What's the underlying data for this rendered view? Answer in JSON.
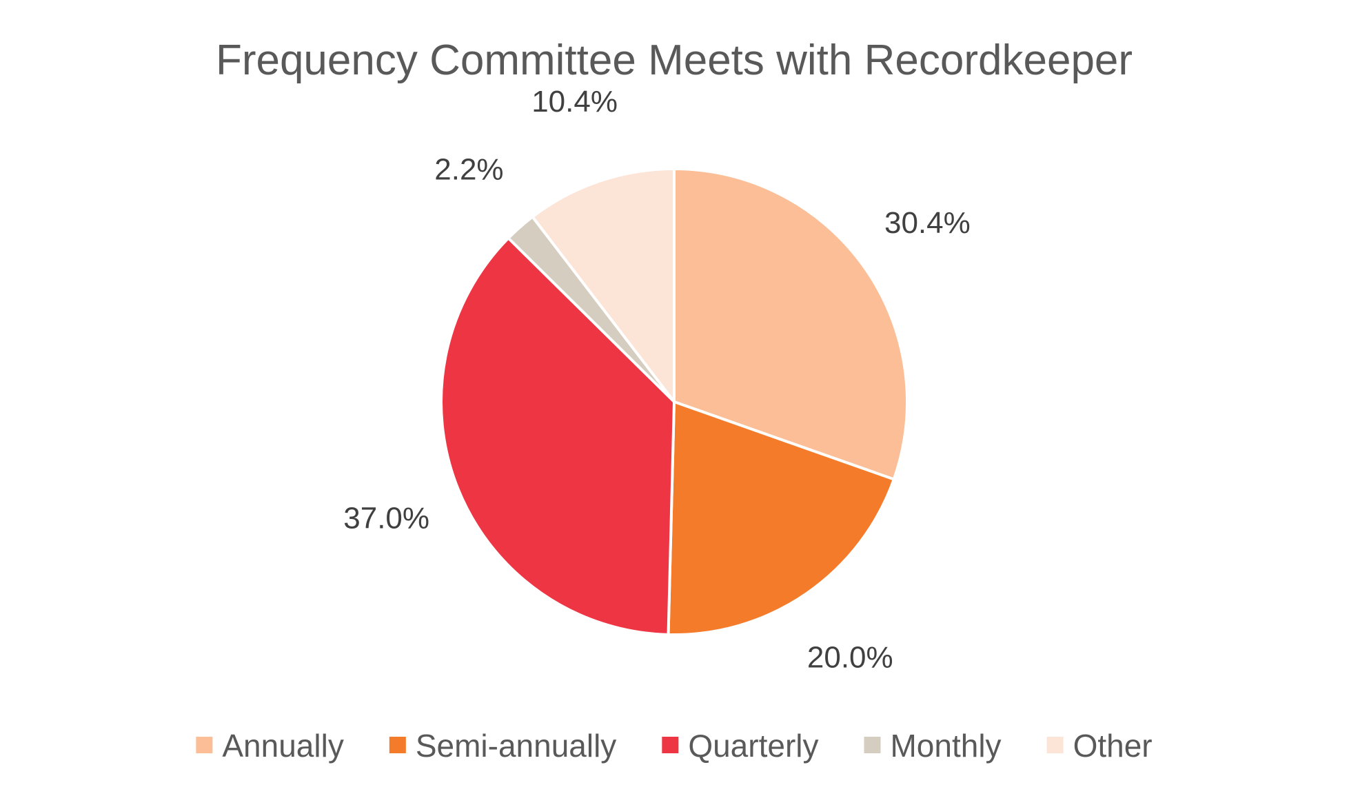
{
  "chart_data": {
    "type": "pie",
    "title": "Frequency Committee Meets with Recordkeeper",
    "legend_position": "bottom",
    "start_angle_deg": 0,
    "direction": "clockwise",
    "slices": [
      {
        "name": "Annually",
        "value": 30.4,
        "label": "30.4%",
        "color": "#FBBE96"
      },
      {
        "name": "Semi-annually",
        "value": 20.0,
        "label": "20.0%",
        "color": "#F47B2A"
      },
      {
        "name": "Quarterly",
        "value": 37.0,
        "label": "37.0%",
        "color": "#EE3543"
      },
      {
        "name": "Monthly",
        "value": 2.2,
        "label": "2.2%",
        "color": "#D5CDC0"
      },
      {
        "name": "Other",
        "value": 10.4,
        "label": "10.4%",
        "color": "#FCE4D6"
      }
    ]
  }
}
